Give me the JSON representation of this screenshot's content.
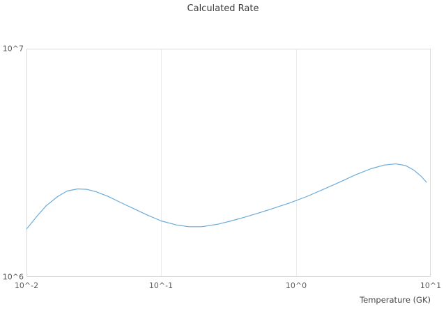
{
  "chart_data": {
    "type": "line",
    "title": "Calculated Rate",
    "xlabel": "Temperature (GK)",
    "ylabel": "",
    "x_scale": "log",
    "y_scale": "log",
    "xlim": [
      0.01,
      10
    ],
    "ylim": [
      1000000,
      10000000
    ],
    "xticks": [
      0.01,
      0.1,
      1,
      10
    ],
    "yticks": [
      1000000,
      10000000
    ],
    "xtick_labels": [
      "10^-2",
      "10^-1",
      "10^0",
      "10^1"
    ],
    "ytick_labels": [
      "10^6",
      "10^7"
    ],
    "grid": true,
    "legend": "none",
    "line_color": "#6aabd8",
    "grid_color": "#ececec",
    "border_color": "#d9d9d9",
    "series": [
      {
        "name": "Calculated Rate",
        "x": [
          0.01,
          0.012,
          0.014,
          0.017,
          0.02,
          0.024,
          0.028,
          0.033,
          0.04,
          0.05,
          0.065,
          0.08,
          0.1,
          0.13,
          0.16,
          0.2,
          0.26,
          0.33,
          0.42,
          0.55,
          0.7,
          0.9,
          1.2,
          1.6,
          2.1,
          2.8,
          3.6,
          4.5,
          5.5,
          6.5,
          7.5,
          8.5,
          9.3
        ],
        "y": [
          1620000,
          1850000,
          2050000,
          2250000,
          2380000,
          2430000,
          2420000,
          2360000,
          2260000,
          2120000,
          1970000,
          1860000,
          1760000,
          1690000,
          1660000,
          1660000,
          1700000,
          1760000,
          1830000,
          1920000,
          2010000,
          2110000,
          2250000,
          2420000,
          2600000,
          2810000,
          2980000,
          3090000,
          3130000,
          3080000,
          2940000,
          2760000,
          2600000
        ]
      }
    ]
  }
}
